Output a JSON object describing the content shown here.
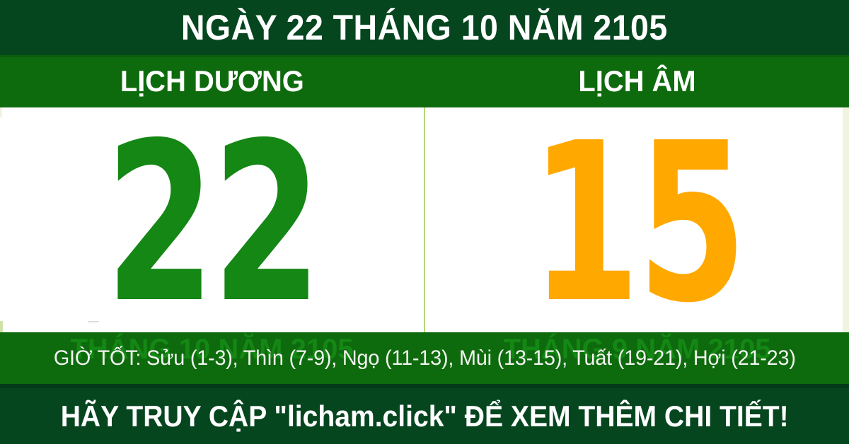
{
  "banner": {
    "title": "NGÀY 22 THÁNG 10 NĂM 2105"
  },
  "solar": {
    "header": "LỊCH DƯƠNG",
    "day": "22",
    "month_year": "THÁNG 10 NĂM 2105"
  },
  "lunar": {
    "header": "LỊCH ÂM",
    "day": "15",
    "month_year": "THÁNG 9 NĂM 2105"
  },
  "good_hours": {
    "text": "GIỜ TỐT: Sửu (1-3), Thìn (7-9), Ngọ (11-13), Mùi (13-15), Tuất (19-21), Hợi (21-23)"
  },
  "footer": {
    "cta": "HÃY TRUY CẬP \"licham.click\" ĐỂ XEM THÊM CHI TIẾT!"
  },
  "colors": {
    "bar_dark_green": "#06461f",
    "bar_green": "#0e6b0d",
    "solar_green": "#148714",
    "label_green": "#148714",
    "lunar_orange": "#ffa800",
    "divider_green": "#b4d87d",
    "page_edge": "#eef4df",
    "text_white": "#ffffff"
  }
}
